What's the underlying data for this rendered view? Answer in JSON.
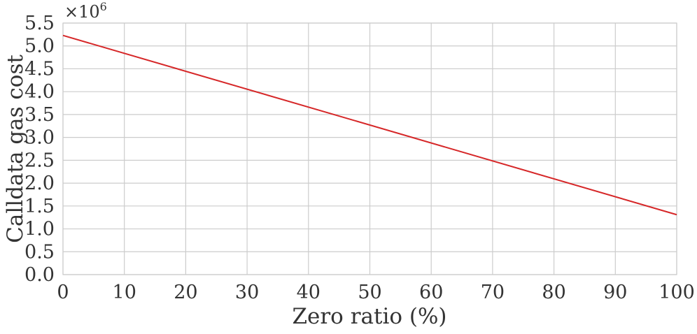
{
  "chart_data": {
    "type": "line",
    "title": "",
    "xlabel": "Zero ratio (%)",
    "ylabel": "Calldata gas cost",
    "y_scale_multiplier": {
      "base": "×10",
      "exponent": "6"
    },
    "xlim": [
      0,
      100
    ],
    "ylim": [
      0.0,
      5.5
    ],
    "x_ticks": [
      0,
      10,
      20,
      30,
      40,
      50,
      60,
      70,
      80,
      90,
      100
    ],
    "y_ticks": [
      "0.0",
      "0.5",
      "1.0",
      "1.5",
      "2.0",
      "2.5",
      "3.0",
      "3.5",
      "4.0",
      "4.5",
      "5.0",
      "5.5"
    ],
    "grid": true,
    "series": [
      {
        "color": "#d62728",
        "x": [
          0,
          100
        ],
        "y": [
          5.23,
          1.31
        ]
      }
    ]
  }
}
